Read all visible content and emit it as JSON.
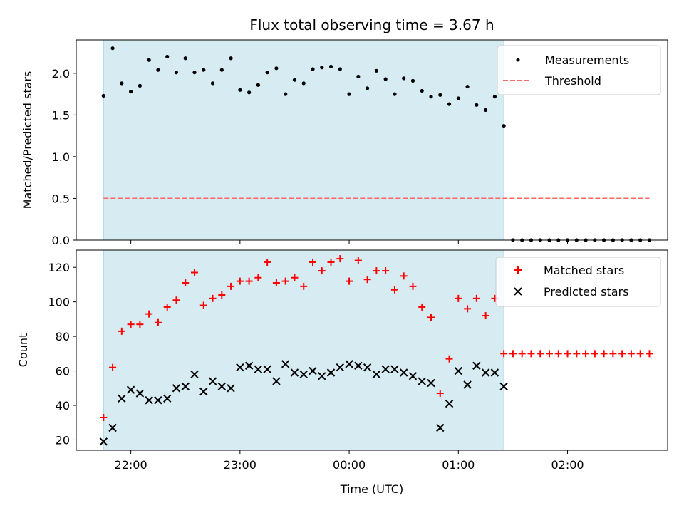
{
  "title": "Flux total observing time = 3.67 h",
  "xlabel": "Time (UTC)",
  "x_ticks": [
    "22:00",
    "23:00",
    "00:00",
    "01:00",
    "02:00"
  ],
  "colors": {
    "span": "#add8e6",
    "matched": "#ff0000",
    "predicted": "#000000",
    "threshold": "#ff6666"
  },
  "chart_data": [
    {
      "type": "scatter",
      "ylabel": "Matched/Predicted stars",
      "ylim": [
        0,
        2.4
      ],
      "y_ticks": [
        "0.0",
        "0.5",
        "1.0",
        "1.5",
        "2.0"
      ],
      "legend_placement": "top-right",
      "shaded_span": {
        "start": "21:45",
        "end": "01:25"
      },
      "series": [
        {
          "name": "Measurements",
          "x": [
            "21:45",
            "21:50",
            "21:55",
            "22:00",
            "22:05",
            "22:10",
            "22:15",
            "22:20",
            "22:25",
            "22:30",
            "22:35",
            "22:40",
            "22:45",
            "22:50",
            "22:55",
            "23:00",
            "23:05",
            "23:10",
            "23:15",
            "23:20",
            "23:25",
            "23:30",
            "23:35",
            "23:40",
            "23:45",
            "23:50",
            "23:55",
            "00:00",
            "00:05",
            "00:10",
            "00:15",
            "00:20",
            "00:25",
            "00:30",
            "00:35",
            "00:40",
            "00:45",
            "00:50",
            "00:55",
            "01:00",
            "01:05",
            "01:10",
            "01:15",
            "01:20",
            "01:25",
            "01:30",
            "01:35",
            "01:40",
            "01:45",
            "01:50",
            "01:55",
            "02:00",
            "02:05",
            "02:10",
            "02:15",
            "02:20",
            "02:25",
            "02:30",
            "02:35",
            "02:40",
            "02:45"
          ],
          "y": [
            1.73,
            2.3,
            1.88,
            1.78,
            1.85,
            2.16,
            2.04,
            2.2,
            2.01,
            2.18,
            2.01,
            2.04,
            1.88,
            2.04,
            2.18,
            1.8,
            1.77,
            1.86,
            2.01,
            2.06,
            1.75,
            1.92,
            1.88,
            2.05,
            2.07,
            2.08,
            2.05,
            1.75,
            1.96,
            1.82,
            2.03,
            1.93,
            1.75,
            1.94,
            1.91,
            1.79,
            1.72,
            1.74,
            1.63,
            1.7,
            1.84,
            1.62,
            1.56,
            1.72,
            1.37,
            0,
            0,
            0,
            0,
            0,
            0,
            0,
            0,
            0,
            0,
            0,
            0,
            0,
            0,
            0,
            0
          ]
        },
        {
          "name": "Threshold",
          "x": [
            "21:45",
            "02:45"
          ],
          "y": [
            0.5,
            0.5
          ]
        }
      ]
    },
    {
      "type": "scatter",
      "ylabel": "Count",
      "ylim": [
        14,
        130
      ],
      "y_ticks": [
        "20",
        "40",
        "60",
        "80",
        "100",
        "120"
      ],
      "legend_placement": "top-right",
      "shaded_span": {
        "start": "21:45",
        "end": "01:25"
      },
      "series": [
        {
          "name": "Matched stars",
          "x": [
            "21:45",
            "21:50",
            "21:55",
            "22:00",
            "22:05",
            "22:10",
            "22:15",
            "22:20",
            "22:25",
            "22:30",
            "22:35",
            "22:40",
            "22:45",
            "22:50",
            "22:55",
            "23:00",
            "23:05",
            "23:10",
            "23:15",
            "23:20",
            "23:25",
            "23:30",
            "23:35",
            "23:40",
            "23:45",
            "23:50",
            "23:55",
            "00:00",
            "00:05",
            "00:10",
            "00:15",
            "00:20",
            "00:25",
            "00:30",
            "00:35",
            "00:40",
            "00:45",
            "00:50",
            "00:55",
            "01:00",
            "01:05",
            "01:10",
            "01:15",
            "01:20",
            "01:25",
            "01:30",
            "01:35",
            "01:40",
            "01:45",
            "01:50",
            "01:55",
            "02:00",
            "02:05",
            "02:10",
            "02:15",
            "02:20",
            "02:25",
            "02:30",
            "02:35",
            "02:40",
            "02:45"
          ],
          "y": [
            33,
            62,
            83,
            87,
            87,
            93,
            88,
            97,
            101,
            111,
            117,
            98,
            102,
            104,
            109,
            112,
            112,
            114,
            123,
            111,
            112,
            114,
            109,
            123,
            118,
            123,
            125,
            112,
            124,
            113,
            118,
            118,
            107,
            115,
            109,
            97,
            91,
            47,
            67,
            102,
            96,
            102,
            92,
            102,
            70,
            70,
            70,
            70,
            70,
            70,
            70,
            70,
            70,
            70,
            70,
            70,
            70,
            70,
            70,
            70,
            70
          ]
        },
        {
          "name": "Predicted stars",
          "x": [
            "21:45",
            "21:50",
            "21:55",
            "22:00",
            "22:05",
            "22:10",
            "22:15",
            "22:20",
            "22:25",
            "22:30",
            "22:35",
            "22:40",
            "22:45",
            "22:50",
            "22:55",
            "23:00",
            "23:05",
            "23:10",
            "23:15",
            "23:20",
            "23:25",
            "23:30",
            "23:35",
            "23:40",
            "23:45",
            "23:50",
            "23:55",
            "00:00",
            "00:05",
            "00:10",
            "00:15",
            "00:20",
            "00:25",
            "00:30",
            "00:35",
            "00:40",
            "00:45",
            "00:50",
            "00:55",
            "01:00",
            "01:05",
            "01:10",
            "01:15",
            "01:20",
            "01:25"
          ],
          "y": [
            19,
            27,
            44,
            49,
            47,
            43,
            43,
            44,
            50,
            51,
            58,
            48,
            54,
            51,
            50,
            62,
            63,
            61,
            61,
            54,
            64,
            59,
            58,
            60,
            57,
            59,
            62,
            64,
            63,
            62,
            58,
            61,
            61,
            59,
            57,
            54,
            53,
            27,
            41,
            60,
            52,
            63,
            59,
            59,
            51
          ]
        }
      ]
    }
  ]
}
